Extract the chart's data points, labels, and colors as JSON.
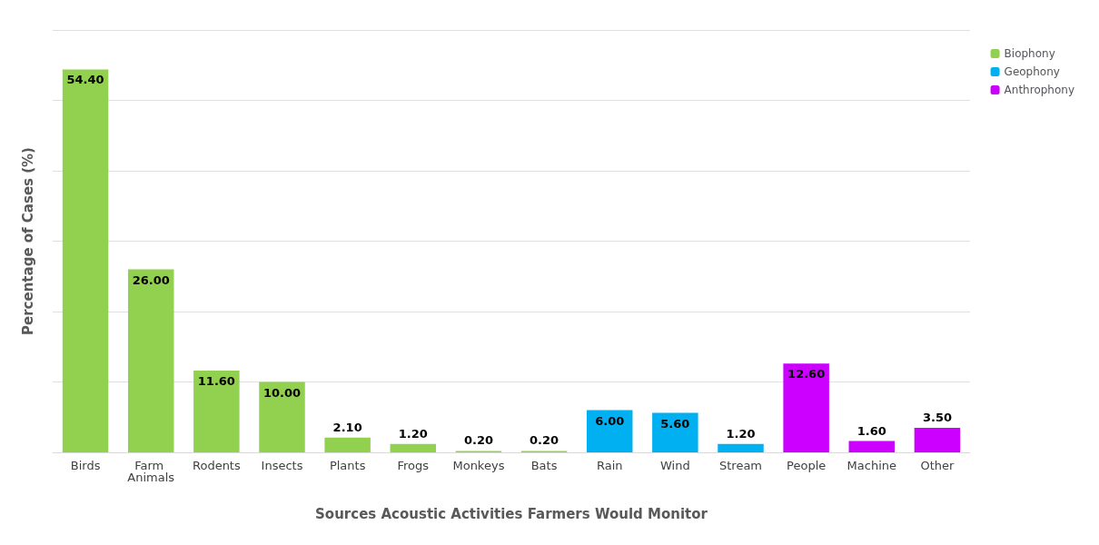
{
  "chart_data": {
    "type": "bar",
    "xlabel": "Sources Acoustic Activities Farmers Would Monitor",
    "ylabel": "Percentage of Cases (%)",
    "categories": [
      "Birds",
      "Farm Animals",
      "Rodents",
      "Insects",
      "Plants",
      "Frogs",
      "Monkeys",
      "Bats",
      "Rain",
      "Wind",
      "Stream",
      "People",
      "Machine",
      "Other"
    ],
    "series": [
      {
        "name": "Biophony",
        "color": "#92d050",
        "values": [
          54.4,
          26.0,
          11.6,
          10.0,
          2.1,
          1.2,
          0.2,
          0.2,
          null,
          null,
          null,
          null,
          null,
          null
        ],
        "value_labels": [
          "54.40",
          "26.00",
          "11.60",
          "10.00",
          "2.10",
          "1.20",
          "0.20",
          "0.20",
          null,
          null,
          null,
          null,
          null,
          null
        ]
      },
      {
        "name": "Geophony",
        "color": "#00b0f0",
        "values": [
          null,
          null,
          null,
          null,
          null,
          null,
          null,
          null,
          6.0,
          5.6,
          1.2,
          null,
          null,
          null
        ],
        "value_labels": [
          null,
          null,
          null,
          null,
          null,
          null,
          null,
          null,
          "6.00",
          "5.60",
          "1.20",
          null,
          null,
          null
        ]
      },
      {
        "name": "Anthrophony",
        "color": "#cc00ff",
        "values": [
          null,
          null,
          null,
          null,
          null,
          null,
          null,
          null,
          null,
          null,
          null,
          12.6,
          1.6,
          3.5
        ],
        "value_labels": [
          null,
          null,
          null,
          null,
          null,
          null,
          null,
          null,
          null,
          null,
          null,
          "12.60",
          "1.60",
          "3.50"
        ]
      }
    ],
    "stacked": true,
    "tick_labels": "x",
    "grid": "y",
    "legend": "top right"
  }
}
